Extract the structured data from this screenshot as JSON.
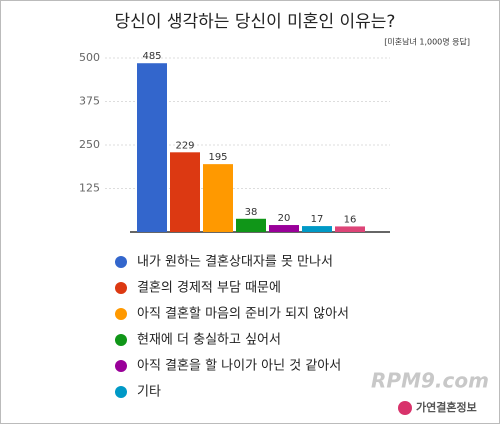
{
  "chart_data": {
    "type": "bar",
    "title": "당신이 생각하는 당신이 미혼인 이유는?",
    "subtitle": "[미혼남녀 1,000명 응답]",
    "categories": [
      "내가 원하는 결혼상대자를 못 만나서",
      "결혼의 경제적 부담 때문에",
      "아직 결혼할 마음의 준비가 되지 않아서",
      "현재에 더 충실하고 싶어서",
      "아직 결혼을 할 나이가 아닌 것 같아서",
      "기타",
      null
    ],
    "values": [
      485,
      229,
      195,
      38,
      20,
      17,
      16
    ],
    "colors": [
      "#3366cc",
      "#dc3912",
      "#ff9900",
      "#109618",
      "#990099",
      "#0099c6",
      "#dd4477"
    ],
    "ylim": [
      0,
      500
    ],
    "yticks": [
      125,
      250,
      375,
      500
    ],
    "grid": true
  },
  "watermark": "RPM9.com",
  "brand": "가연결혼정보"
}
